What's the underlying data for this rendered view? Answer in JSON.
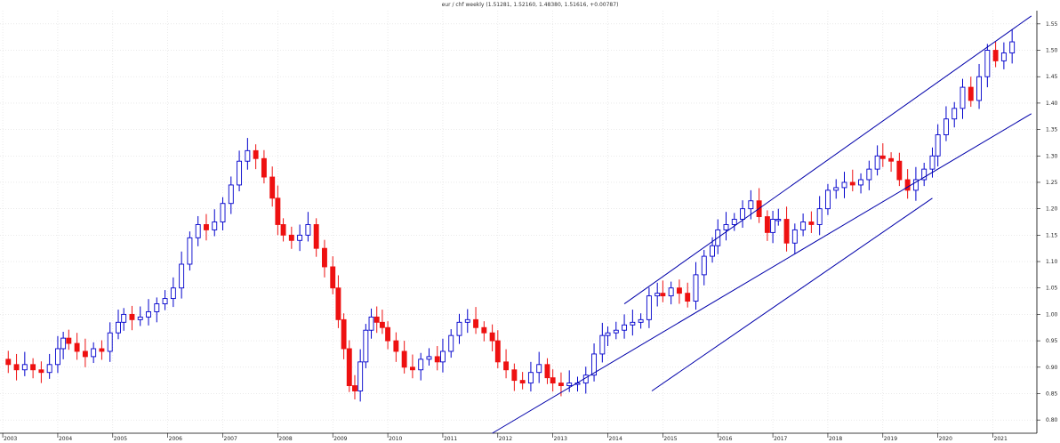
{
  "chart_data": {
    "type": "candlestick",
    "title": "eur / chf weekly (1.51281, 1.52160, 1.48380, 1.51616, +0.00787)",
    "xlabel": "",
    "ylabel": "",
    "ylim": [
      0.775,
      1.575
    ],
    "y_ticks": [
      "1.55",
      "1.50",
      "1.45",
      "1.40",
      "1.35",
      "1.30",
      "1.25",
      "1.20",
      "1.15",
      "1.10",
      "1.05",
      "1.00",
      "0.95",
      "0.90",
      "0.85",
      "0.80"
    ],
    "y_tick_values": [
      1.55,
      1.5,
      1.45,
      1.4,
      1.35,
      1.3,
      1.25,
      1.2,
      1.15,
      1.1,
      1.05,
      1.0,
      0.95,
      0.9,
      0.85,
      0.8
    ],
    "x_ticks": [
      "2003",
      "2004",
      "2005",
      "2006",
      "2007",
      "2008",
      "2009",
      "2010",
      "2011",
      "2012",
      "2013",
      "2014",
      "2015",
      "2016",
      "2017",
      "2018",
      "2019",
      "2020",
      "2021"
    ],
    "x_tick_years": [
      2003.0,
      2004.0,
      2005.0,
      2006.0,
      2007.0,
      2008.0,
      2009.0,
      2010.0,
      2011.0,
      2012.0,
      2013.0,
      2014.0,
      2015.0,
      2016.0,
      2017.0,
      2018.0,
      2019.0,
      2020.0,
      2021.0
    ],
    "xlim": [
      2002.95,
      2021.8
    ],
    "grid": true,
    "colors": {
      "up": "#0000cc",
      "down": "#ee1111",
      "line": "#0000aa",
      "grid": "#dddddd"
    },
    "trendlines": [
      {
        "x": [
          2014.3,
          2021.7
        ],
        "y": [
          1.02,
          1.565
        ]
      },
      {
        "x": [
          2011.9,
          2021.7
        ],
        "y": [
          0.775,
          1.38
        ]
      },
      {
        "x": [
          2014.8,
          2019.9
        ],
        "y": [
          0.855,
          1.22
        ]
      }
    ],
    "series": [
      {
        "key": "close",
        "points": [
          [
            2003.0,
            0.915
          ],
          [
            2003.1,
            0.905
          ],
          [
            2003.25,
            0.895
          ],
          [
            2003.4,
            0.905
          ],
          [
            2003.55,
            0.895
          ],
          [
            2003.7,
            0.89
          ],
          [
            2003.85,
            0.905
          ],
          [
            2004.0,
            0.935
          ],
          [
            2004.1,
            0.955
          ],
          [
            2004.2,
            0.945
          ],
          [
            2004.35,
            0.93
          ],
          [
            2004.5,
            0.92
          ],
          [
            2004.65,
            0.935
          ],
          [
            2004.8,
            0.93
          ],
          [
            2004.95,
            0.965
          ],
          [
            2005.1,
            0.985
          ],
          [
            2005.2,
            1.0
          ],
          [
            2005.35,
            0.99
          ],
          [
            2005.5,
            0.995
          ],
          [
            2005.65,
            1.005
          ],
          [
            2005.8,
            1.02
          ],
          [
            2005.95,
            1.03
          ],
          [
            2006.1,
            1.05
          ],
          [
            2006.25,
            1.095
          ],
          [
            2006.4,
            1.145
          ],
          [
            2006.55,
            1.17
          ],
          [
            2006.7,
            1.16
          ],
          [
            2006.85,
            1.175
          ],
          [
            2007.0,
            1.21
          ],
          [
            2007.15,
            1.245
          ],
          [
            2007.3,
            1.29
          ],
          [
            2007.45,
            1.31
          ],
          [
            2007.6,
            1.295
          ],
          [
            2007.75,
            1.26
          ],
          [
            2007.9,
            1.22
          ],
          [
            2008.0,
            1.17
          ],
          [
            2008.1,
            1.15
          ],
          [
            2008.25,
            1.14
          ],
          [
            2008.4,
            1.15
          ],
          [
            2008.55,
            1.17
          ],
          [
            2008.7,
            1.125
          ],
          [
            2008.85,
            1.09
          ],
          [
            2009.0,
            1.05
          ],
          [
            2009.1,
            0.99
          ],
          [
            2009.2,
            0.935
          ],
          [
            2009.3,
            0.865
          ],
          [
            2009.4,
            0.855
          ],
          [
            2009.5,
            0.91
          ],
          [
            2009.6,
            0.97
          ],
          [
            2009.7,
            0.995
          ],
          [
            2009.8,
            0.985
          ],
          [
            2009.9,
            0.975
          ],
          [
            2010.0,
            0.95
          ],
          [
            2010.15,
            0.93
          ],
          [
            2010.3,
            0.9
          ],
          [
            2010.45,
            0.895
          ],
          [
            2010.6,
            0.915
          ],
          [
            2010.75,
            0.92
          ],
          [
            2010.9,
            0.91
          ],
          [
            2011.0,
            0.93
          ],
          [
            2011.15,
            0.96
          ],
          [
            2011.3,
            0.985
          ],
          [
            2011.45,
            0.99
          ],
          [
            2011.6,
            0.975
          ],
          [
            2011.75,
            0.965
          ],
          [
            2011.9,
            0.95
          ],
          [
            2012.0,
            0.91
          ],
          [
            2012.15,
            0.895
          ],
          [
            2012.3,
            0.875
          ],
          [
            2012.45,
            0.87
          ],
          [
            2012.6,
            0.89
          ],
          [
            2012.75,
            0.905
          ],
          [
            2012.9,
            0.88
          ],
          [
            2013.0,
            0.87
          ],
          [
            2013.15,
            0.865
          ],
          [
            2013.3,
            0.87
          ],
          [
            2013.45,
            0.87
          ],
          [
            2013.6,
            0.885
          ],
          [
            2013.75,
            0.925
          ],
          [
            2013.9,
            0.96
          ],
          [
            2014.0,
            0.965
          ],
          [
            2014.15,
            0.97
          ],
          [
            2014.3,
            0.98
          ],
          [
            2014.45,
            0.985
          ],
          [
            2014.6,
            0.99
          ],
          [
            2014.75,
            1.035
          ],
          [
            2014.9,
            1.04
          ],
          [
            2015.0,
            1.035
          ],
          [
            2015.15,
            1.05
          ],
          [
            2015.3,
            1.04
          ],
          [
            2015.45,
            1.025
          ],
          [
            2015.6,
            1.075
          ],
          [
            2015.75,
            1.11
          ],
          [
            2015.9,
            1.13
          ],
          [
            2016.0,
            1.16
          ],
          [
            2016.15,
            1.17
          ],
          [
            2016.3,
            1.18
          ],
          [
            2016.45,
            1.2
          ],
          [
            2016.6,
            1.215
          ],
          [
            2016.75,
            1.185
          ],
          [
            2016.9,
            1.155
          ],
          [
            2017.0,
            1.18
          ],
          [
            2017.1,
            1.18
          ],
          [
            2017.25,
            1.135
          ],
          [
            2017.4,
            1.16
          ],
          [
            2017.55,
            1.175
          ],
          [
            2017.7,
            1.17
          ],
          [
            2017.85,
            1.2
          ],
          [
            2018.0,
            1.235
          ],
          [
            2018.15,
            1.24
          ],
          [
            2018.3,
            1.25
          ],
          [
            2018.45,
            1.245
          ],
          [
            2018.6,
            1.255
          ],
          [
            2018.75,
            1.275
          ],
          [
            2018.9,
            1.3
          ],
          [
            2019.0,
            1.295
          ],
          [
            2019.15,
            1.29
          ],
          [
            2019.3,
            1.255
          ],
          [
            2019.45,
            1.235
          ],
          [
            2019.6,
            1.255
          ],
          [
            2019.75,
            1.275
          ],
          [
            2019.9,
            1.3
          ],
          [
            2020.0,
            1.34
          ],
          [
            2020.15,
            1.37
          ],
          [
            2020.3,
            1.39
          ],
          [
            2020.45,
            1.43
          ],
          [
            2020.6,
            1.405
          ],
          [
            2020.75,
            1.45
          ],
          [
            2020.9,
            1.5
          ],
          [
            2021.05,
            1.48
          ],
          [
            2021.2,
            1.495
          ],
          [
            2021.35,
            1.516
          ]
        ]
      }
    ]
  }
}
